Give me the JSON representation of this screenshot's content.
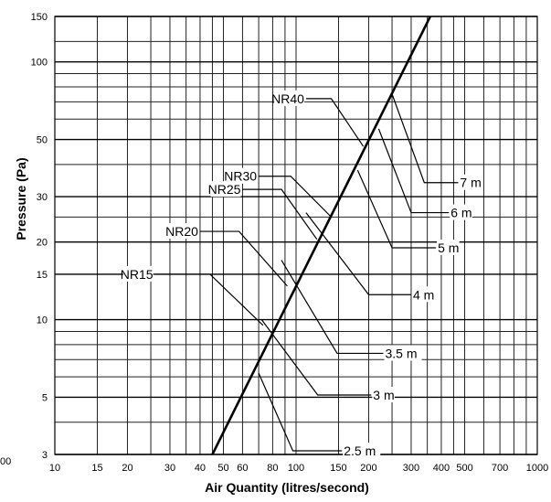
{
  "chart_data": {
    "type": "line",
    "xlabel": "Air Quantity (litres/second)",
    "ylabel": "Pressure (Pa)",
    "x_scale": "log",
    "y_scale": "log",
    "xlim": [
      10,
      1000
    ],
    "ylim": [
      3,
      150
    ],
    "grid": true,
    "x_ticks": [
      "10",
      "15",
      "20",
      "30",
      "40",
      "50",
      "60",
      "80",
      "100",
      "150",
      "200",
      "300",
      "400",
      "500",
      "700",
      "1000"
    ],
    "x_tick_values": [
      10,
      15,
      20,
      30,
      40,
      50,
      60,
      80,
      100,
      150,
      200,
      300,
      400,
      500,
      700,
      1000
    ],
    "y_ticks": [
      "3",
      "5",
      "10",
      "15",
      "20",
      "30",
      "50",
      "100",
      "150"
    ],
    "y_tick_values": [
      3,
      5,
      10,
      15,
      20,
      30,
      50,
      100,
      150
    ],
    "y_minor_values": [
      4,
      6,
      7,
      8,
      9,
      25,
      40,
      60,
      70,
      80,
      90,
      120
    ],
    "x_minor_values": [
      25,
      35,
      45,
      70,
      90,
      250,
      350,
      450,
      600,
      800,
      900
    ],
    "main_line": {
      "points": [
        {
          "x": 45,
          "y": 3
        },
        {
          "x": 360,
          "y": 150
        }
      ]
    },
    "noise_curves": [
      {
        "label": "NR40",
        "points": [
          {
            "x": 110,
            "y": 72
          },
          {
            "x": 140,
            "y": 72
          },
          {
            "x": 190,
            "y": 47
          }
        ]
      },
      {
        "label": "NR30",
        "points": [
          {
            "x": 70,
            "y": 36
          },
          {
            "x": 95,
            "y": 36
          },
          {
            "x": 140,
            "y": 25
          }
        ]
      },
      {
        "label": "NR25",
        "points": [
          {
            "x": 60,
            "y": 32
          },
          {
            "x": 87,
            "y": 32
          },
          {
            "x": 122,
            "y": 20.5
          }
        ]
      },
      {
        "label": "NR20",
        "points": [
          {
            "x": 40,
            "y": 22
          },
          {
            "x": 58,
            "y": 22
          },
          {
            "x": 92,
            "y": 13.5
          }
        ]
      },
      {
        "label": "NR15",
        "points": [
          {
            "x": 26,
            "y": 15
          },
          {
            "x": 44,
            "y": 15
          },
          {
            "x": 73,
            "y": 9.5
          }
        ]
      }
    ],
    "distance_lines": [
      {
        "label": "7 m",
        "points": [
          {
            "x": 250,
            "y": 75
          },
          {
            "x": 340,
            "y": 34
          },
          {
            "x": 470,
            "y": 34
          }
        ]
      },
      {
        "label": "6 m",
        "points": [
          {
            "x": 220,
            "y": 55
          },
          {
            "x": 300,
            "y": 26
          },
          {
            "x": 430,
            "y": 26
          }
        ]
      },
      {
        "label": "5 m",
        "points": [
          {
            "x": 180,
            "y": 38
          },
          {
            "x": 250,
            "y": 19
          },
          {
            "x": 380,
            "y": 19
          }
        ]
      },
      {
        "label": "4 m",
        "points": [
          {
            "x": 110,
            "y": 26
          },
          {
            "x": 200,
            "y": 12.5
          },
          {
            "x": 300,
            "y": 12.5
          }
        ]
      },
      {
        "label": "3.5 m",
        "points": [
          {
            "x": 87,
            "y": 17
          },
          {
            "x": 148,
            "y": 7.4
          },
          {
            "x": 230,
            "y": 7.4
          }
        ]
      },
      {
        "label": "3 m",
        "points": [
          {
            "x": 72,
            "y": 10
          },
          {
            "x": 123,
            "y": 5.1
          },
          {
            "x": 205,
            "y": 5.1
          }
        ]
      },
      {
        "label": "2.5 m",
        "points": [
          {
            "x": 70,
            "y": 6.2
          },
          {
            "x": 97,
            "y": 3.1
          },
          {
            "x": 155,
            "y": 3.1
          }
        ]
      }
    ],
    "edge_tick_label": "00"
  }
}
